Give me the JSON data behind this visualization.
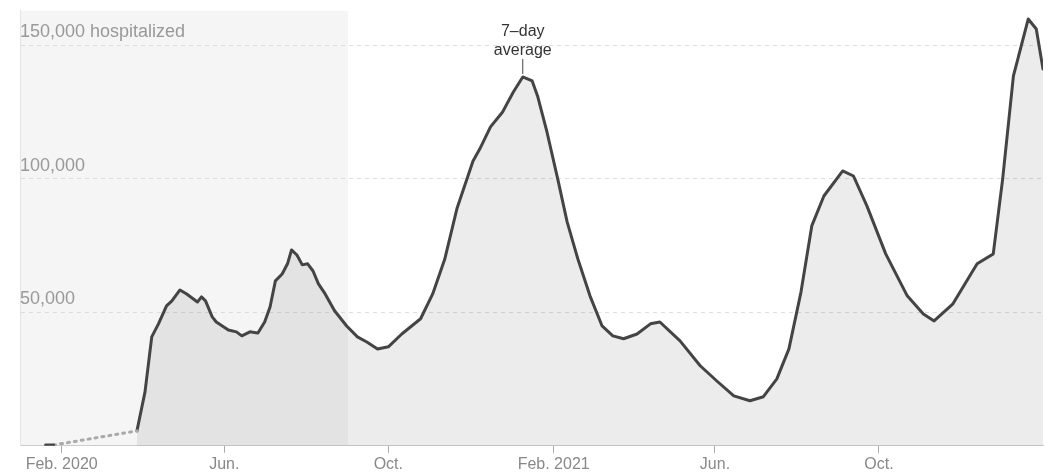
{
  "chart_data": {
    "type": "area",
    "xlim": [
      "2020-01-01",
      "2022-01-31"
    ],
    "xticks": [
      {
        "value": "2020-02-01",
        "label": "Feb. 2020"
      },
      {
        "value": "2020-06-01",
        "label": "Jun."
      },
      {
        "value": "2020-10-01",
        "label": "Oct."
      },
      {
        "value": "2021-02-01",
        "label": "Feb. 2021"
      },
      {
        "value": "2021-06-01",
        "label": "Jun."
      },
      {
        "value": "2021-10-01",
        "label": "Oct."
      }
    ],
    "ylim": [
      0,
      163000
    ],
    "yticks": [
      {
        "value": 50000,
        "label": "50,000"
      },
      {
        "value": 100000,
        "label": "100,000"
      },
      {
        "value": 150000,
        "label": "150,000 hospitalized"
      }
    ],
    "grid": "y",
    "marker": "none",
    "bands": [
      {
        "axis": "x",
        "from": "2020-01-01",
        "to": "2020-09-01",
        "color": "#f5f5f5"
      }
    ],
    "annotations": [
      {
        "text": "7–day average",
        "x": "2021-01-09",
        "y": 138200
      }
    ],
    "series": [
      {
        "type": "line",
        "color": "#444444",
        "x": [
          "2020-01-20",
          "2020-01-26"
        ],
        "values": [
          300,
          300
        ]
      },
      {
        "type": "line",
        "line_style": "dotted",
        "color": "#aaaaaa",
        "x": [
          "2020-01-26",
          "2020-03-28"
        ],
        "values": [
          300,
          5600
        ]
      },
      {
        "color": "#444444",
        "x": [
          "2020-03-28",
          "2020-04-03",
          "2020-04-08",
          "2020-04-13",
          "2020-04-19",
          "2020-04-23",
          "2020-04-29",
          "2020-05-04",
          "2020-05-12",
          "2020-05-15",
          "2020-05-18",
          "2020-05-23",
          "2020-05-26",
          "2020-06-04",
          "2020-06-10",
          "2020-06-14",
          "2020-06-20",
          "2020-06-26",
          "2020-07-01",
          "2020-07-05",
          "2020-07-09",
          "2020-07-14",
          "2020-07-18",
          "2020-07-21",
          "2020-07-25",
          "2020-07-29",
          "2020-08-02",
          "2020-08-06",
          "2020-08-10",
          "2020-08-15",
          "2020-08-22",
          "2020-08-31",
          "2020-09-08",
          "2020-09-15",
          "2020-09-23",
          "2020-10-01",
          "2020-10-11",
          "2020-10-25",
          "2020-11-03",
          "2020-11-12",
          "2020-11-21",
          "2020-12-03",
          "2020-12-08",
          "2020-12-16",
          "2020-12-25",
          "2021-01-02",
          "2021-01-09",
          "2021-01-16",
          "2021-01-20",
          "2021-01-27",
          "2021-02-04",
          "2021-02-11",
          "2021-02-19",
          "2021-02-28",
          "2021-03-09",
          "2021-03-17",
          "2021-03-25",
          "2021-04-04",
          "2021-04-14",
          "2021-04-21",
          "2021-05-06",
          "2021-05-21",
          "2021-06-03",
          "2021-06-15",
          "2021-06-27",
          "2021-07-07",
          "2021-07-17",
          "2021-07-26",
          "2021-08-04",
          "2021-08-12",
          "2021-08-21",
          "2021-09-04",
          "2021-09-12",
          "2021-09-22",
          "2021-10-06",
          "2021-10-22",
          "2021-11-03",
          "2021-11-11",
          "2021-11-25",
          "2021-12-13",
          "2021-12-25",
          "2022-01-01",
          "2022-01-09",
          "2022-01-20",
          "2022-01-26",
          "2022-01-31"
        ],
        "values": [
          5600,
          20200,
          40800,
          45700,
          52400,
          54300,
          58400,
          56900,
          53900,
          55800,
          54300,
          48300,
          46400,
          43400,
          42700,
          41200,
          42700,
          42300,
          46400,
          52000,
          61800,
          64400,
          68200,
          73400,
          71500,
          67800,
          68200,
          65500,
          60700,
          56900,
          50600,
          44900,
          40800,
          38900,
          36300,
          37100,
          41900,
          47600,
          56900,
          70000,
          88800,
          106700,
          111200,
          119500,
          125100,
          132600,
          138200,
          136700,
          131100,
          117600,
          100000,
          83900,
          70000,
          56200,
          44900,
          41200,
          40100,
          41900,
          45700,
          46400,
          39300,
          30000,
          24000,
          18700,
          16900,
          18400,
          25100,
          36300,
          57700,
          82400,
          93600,
          103000,
          101100,
          89900,
          71900,
          56200,
          49400,
          46800,
          53200,
          68200,
          71900,
          100000,
          138600,
          159900,
          156200,
          141200
        ]
      }
    ]
  }
}
